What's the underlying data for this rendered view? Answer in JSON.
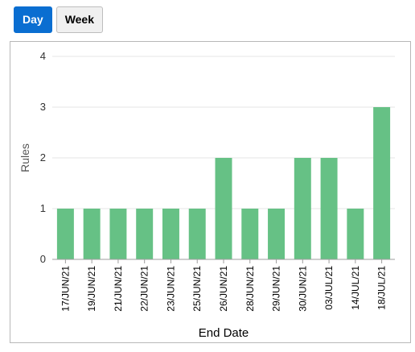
{
  "toolbar": {
    "buttons": [
      {
        "label": "Day",
        "active": true
      },
      {
        "label": "Week",
        "active": false
      }
    ]
  },
  "colors": {
    "bar": "#66c185",
    "accent": "#0a6ed1"
  },
  "chart_data": {
    "type": "bar",
    "categories": [
      "17/JUN/21",
      "19/JUN/21",
      "21/JUN/21",
      "22/JUN/21",
      "23/JUN/21",
      "25/JUN/21",
      "26/JUN/21",
      "28/JUN/21",
      "29/JUN/21",
      "30/JUN/21",
      "03/JUL/21",
      "14/JUL/21",
      "18/JUL/21"
    ],
    "values": [
      1,
      1,
      1,
      1,
      1,
      1,
      2,
      1,
      1,
      2,
      2,
      1,
      3
    ],
    "title": "",
    "xlabel": "End Date",
    "ylabel": "Rules",
    "ylim": [
      0,
      4
    ],
    "yticks": [
      0,
      1,
      2,
      3,
      4
    ],
    "grid": true,
    "legend": "none"
  }
}
